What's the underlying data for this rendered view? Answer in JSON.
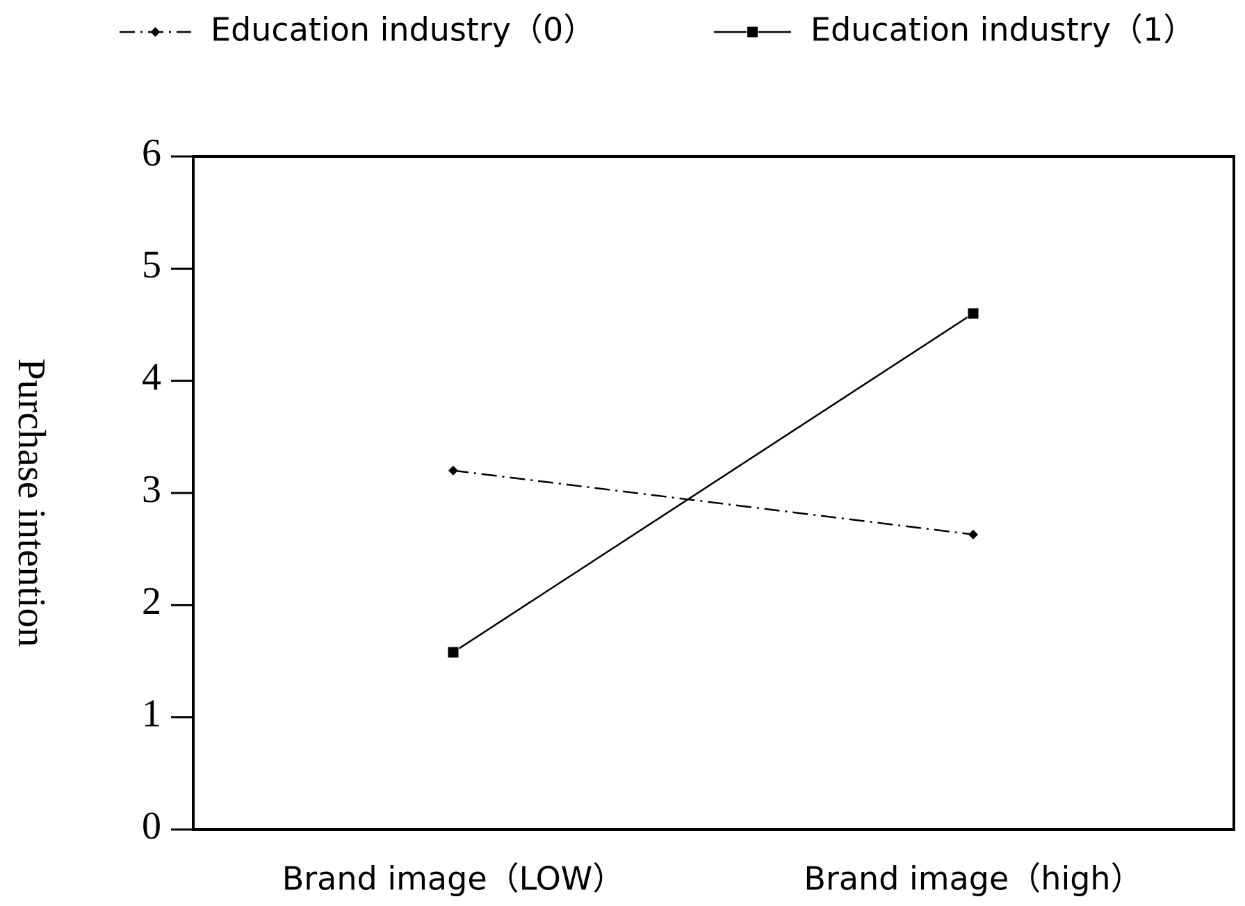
{
  "chart_data": {
    "type": "line",
    "categories": [
      "Brand image（LOW）",
      "Brand image（high）"
    ],
    "series": [
      {
        "name": "Education industry（0）",
        "color": "#000000",
        "dash": "dashdot",
        "marker": "diamond",
        "values": [
          3.2,
          2.63
        ]
      },
      {
        "name": "Education industry（1）",
        "color": "#000000",
        "dash": "solid",
        "marker": "square",
        "values": [
          1.58,
          4.6
        ]
      }
    ],
    "y_label": "Purchase intention",
    "ylim": [
      0,
      6
    ],
    "yticks": [
      0,
      1,
      2,
      3,
      4,
      5,
      6
    ],
    "legend": "top"
  }
}
